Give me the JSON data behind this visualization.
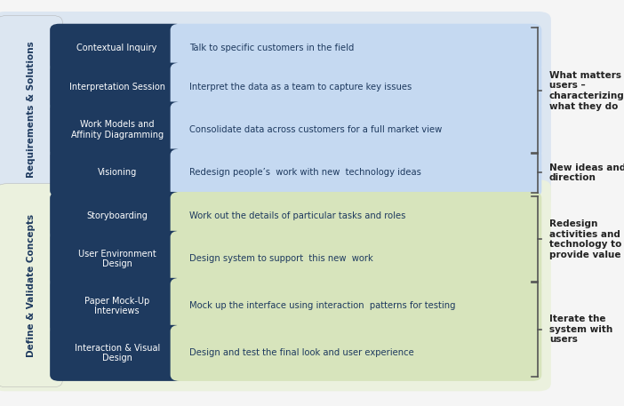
{
  "fig_width": 7.02,
  "fig_height": 4.57,
  "dpi": 100,
  "bg_color": "#f5f5f5",
  "section1_bg": "#dce6f1",
  "section2_bg": "#ebf1de",
  "dark_blue": "#1e3a5f",
  "desc1_bg": "#c5d9f1",
  "desc2_bg": "#d7e4bc",
  "text_white": "#ffffff",
  "text_dark": "#1e3a5f",
  "bracket_color": "#555555",
  "bracket_text_color": "#222222",
  "rows": [
    {
      "label": "Contextual Inquiry",
      "desc": "Talk to specific customers in the field",
      "section": 1,
      "two_line": false
    },
    {
      "label": "Interpretation Session",
      "desc": "Interpret the data as a team to capture key issues",
      "section": 1,
      "two_line": false
    },
    {
      "label": "Work Models and\nAffinity Diagramming",
      "desc": "Consolidate data across customers for a full market view",
      "section": 1,
      "two_line": true
    },
    {
      "label": "Visioning",
      "desc": "Redesign people’s  work with new  technology ideas",
      "section": 1,
      "two_line": false
    },
    {
      "label": "Storyboarding",
      "desc": "Work out the details of particular tasks and roles",
      "section": 2,
      "two_line": false
    },
    {
      "label": "User Environment\nDesign",
      "desc": "Design system to support  this new  work",
      "section": 2,
      "two_line": true
    },
    {
      "label": "Paper Mock-Up\nInterviews",
      "desc": "Mock up the interface using interaction  patterns for testing",
      "section": 2,
      "two_line": true
    },
    {
      "label": "Interaction & Visual\nDesign",
      "desc": "Design and test the final look and user experience",
      "section": 2,
      "two_line": true
    }
  ],
  "brackets": [
    {
      "rows": [
        0,
        1,
        2
      ],
      "text": "What matters to\nusers –\ncharacterizing\nwhat they do"
    },
    {
      "rows": [
        3
      ],
      "text": "New ideas and\ndirection"
    },
    {
      "rows": [
        4,
        5
      ],
      "text": "Redesign\nactivities and\ntechnology to\nprovide value"
    },
    {
      "rows": [
        6,
        7
      ],
      "text": "Iterate the\nsystem with\nusers"
    }
  ],
  "section_labels": [
    {
      "text": "Requirements & Solutions",
      "section": 1
    },
    {
      "text": "Define & Validate Concepts",
      "section": 2
    }
  ]
}
